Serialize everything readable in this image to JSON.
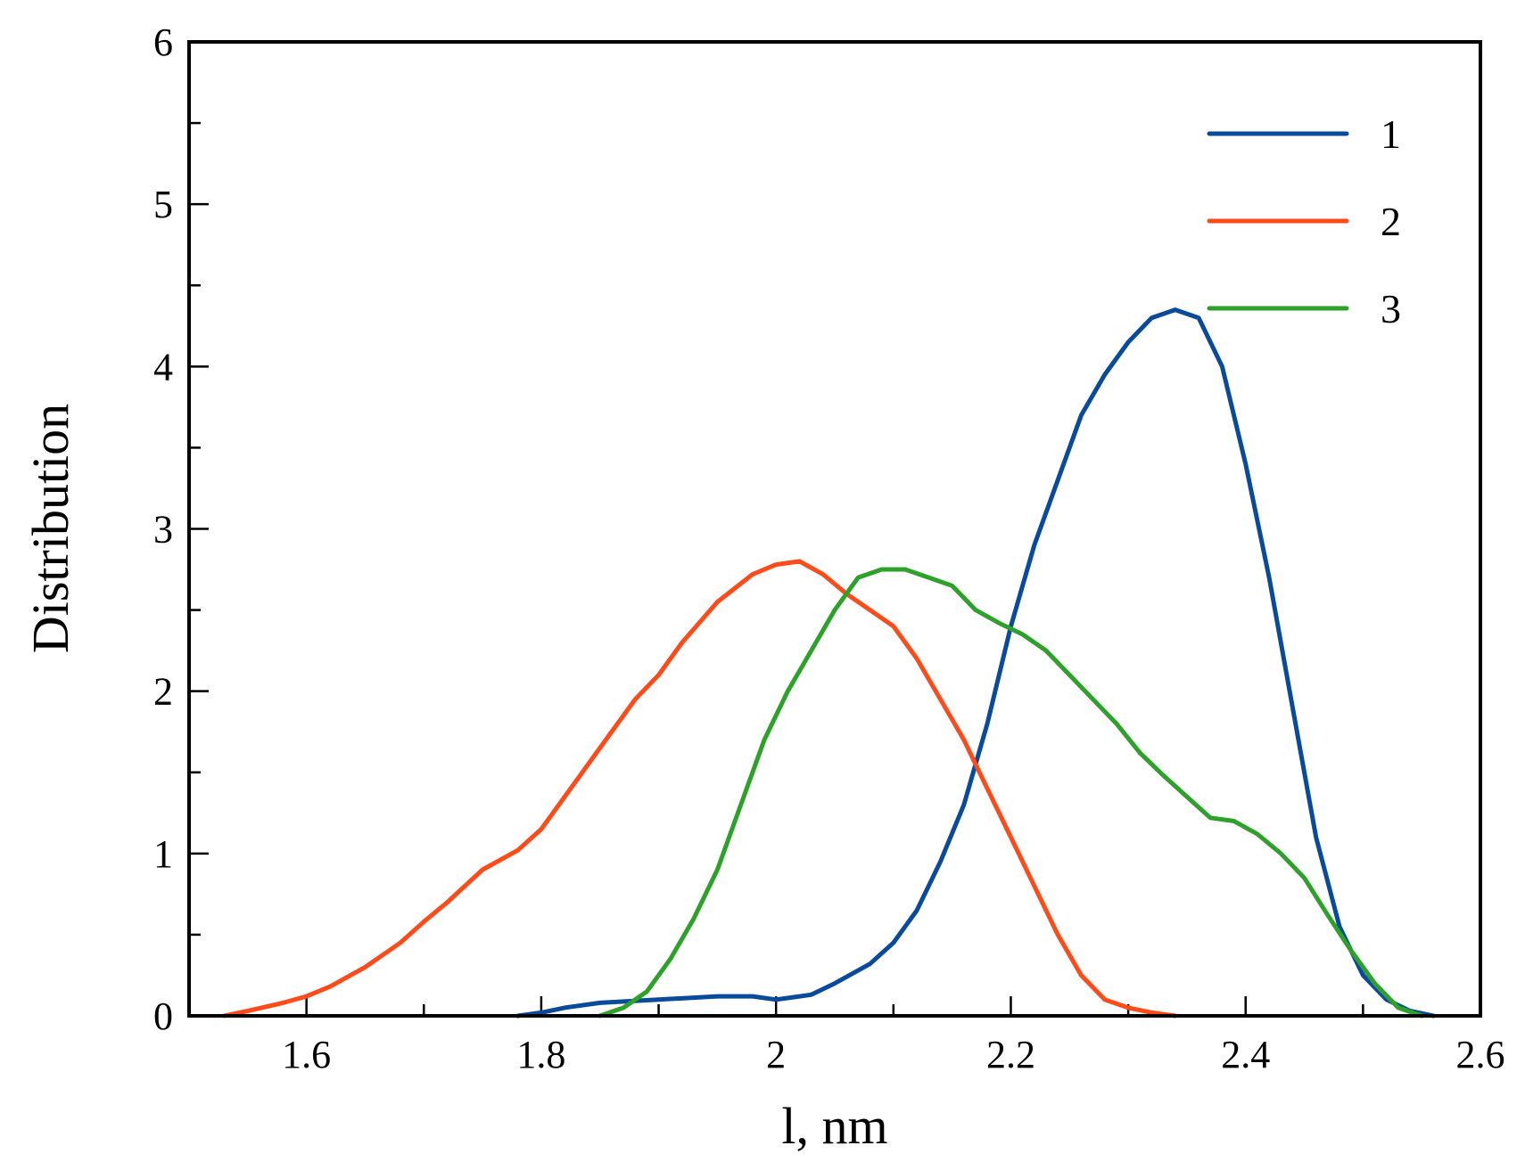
{
  "chart_data": {
    "type": "line",
    "title": "",
    "xlabel": "l, nm",
    "ylabel": "Distribution",
    "xlim": [
      1.5,
      2.6
    ],
    "ylim": [
      0,
      6
    ],
    "x_ticks": [
      1.6,
      1.8,
      2.0,
      2.2,
      2.4,
      2.6
    ],
    "x_tick_labels": [
      "1.6",
      "1.8",
      "2",
      "2.2",
      "2.4",
      "2.6"
    ],
    "y_ticks": [
      0,
      1,
      2,
      3,
      4,
      5,
      6
    ],
    "y_tick_labels": [
      "0",
      "1",
      "2",
      "3",
      "4",
      "5",
      "6"
    ],
    "grid": false,
    "legend_position": "top-right",
    "series": [
      {
        "name": "1",
        "color": "#0a4a9a",
        "x": [
          1.78,
          1.8,
          1.82,
          1.85,
          1.9,
          1.95,
          1.98,
          2.0,
          2.03,
          2.05,
          2.08,
          2.1,
          2.12,
          2.14,
          2.16,
          2.18,
          2.2,
          2.22,
          2.24,
          2.26,
          2.28,
          2.3,
          2.32,
          2.34,
          2.36,
          2.38,
          2.4,
          2.42,
          2.44,
          2.46,
          2.48,
          2.5,
          2.52,
          2.54,
          2.56
        ],
        "y": [
          0.0,
          0.02,
          0.05,
          0.08,
          0.1,
          0.12,
          0.12,
          0.1,
          0.13,
          0.2,
          0.32,
          0.45,
          0.65,
          0.95,
          1.3,
          1.8,
          2.4,
          2.9,
          3.3,
          3.7,
          3.95,
          4.15,
          4.3,
          4.35,
          4.3,
          4.0,
          3.4,
          2.7,
          1.9,
          1.1,
          0.55,
          0.25,
          0.1,
          0.03,
          0.0
        ]
      },
      {
        "name": "2",
        "color": "#ff4a1a",
        "x": [
          1.53,
          1.55,
          1.58,
          1.6,
          1.62,
          1.65,
          1.68,
          1.7,
          1.72,
          1.75,
          1.78,
          1.8,
          1.82,
          1.85,
          1.88,
          1.9,
          1.92,
          1.95,
          1.98,
          2.0,
          2.02,
          2.04,
          2.06,
          2.08,
          2.1,
          2.12,
          2.14,
          2.16,
          2.18,
          2.2,
          2.22,
          2.24,
          2.26,
          2.28,
          2.3,
          2.32,
          2.34
        ],
        "y": [
          0.0,
          0.03,
          0.08,
          0.12,
          0.18,
          0.3,
          0.45,
          0.58,
          0.7,
          0.9,
          1.02,
          1.15,
          1.35,
          1.65,
          1.95,
          2.1,
          2.3,
          2.55,
          2.72,
          2.78,
          2.8,
          2.72,
          2.6,
          2.5,
          2.4,
          2.2,
          1.95,
          1.7,
          1.4,
          1.1,
          0.8,
          0.5,
          0.25,
          0.1,
          0.05,
          0.02,
          0.0
        ]
      },
      {
        "name": "3",
        "color": "#2ea12a",
        "x": [
          1.85,
          1.87,
          1.89,
          1.91,
          1.93,
          1.95,
          1.97,
          1.99,
          2.01,
          2.03,
          2.05,
          2.07,
          2.09,
          2.11,
          2.13,
          2.15,
          2.17,
          2.19,
          2.21,
          2.23,
          2.25,
          2.27,
          2.29,
          2.31,
          2.33,
          2.35,
          2.37,
          2.39,
          2.41,
          2.43,
          2.45,
          2.47,
          2.49,
          2.51,
          2.53,
          2.55
        ],
        "y": [
          0.0,
          0.05,
          0.15,
          0.35,
          0.6,
          0.9,
          1.3,
          1.7,
          2.0,
          2.25,
          2.5,
          2.7,
          2.75,
          2.75,
          2.7,
          2.65,
          2.5,
          2.42,
          2.35,
          2.25,
          2.1,
          1.95,
          1.8,
          1.62,
          1.48,
          1.35,
          1.22,
          1.2,
          1.12,
          1.0,
          0.85,
          0.62,
          0.4,
          0.2,
          0.05,
          0.0
        ]
      }
    ]
  }
}
